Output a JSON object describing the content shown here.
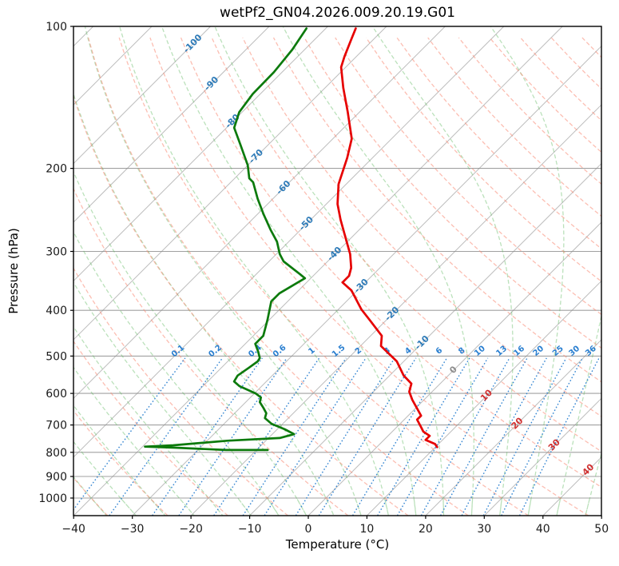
{
  "chart_data": {
    "type": "line",
    "variant": "skew-t-log-p",
    "title": "wetPf2_GN04.2026.009.20.19.G01",
    "xlabel": "Temperature (°C)",
    "ylabel": "Pressure (hPa)",
    "xlim": [
      -40,
      50
    ],
    "x_ticks": [
      -40,
      -30,
      -20,
      -10,
      0,
      10,
      20,
      30,
      40,
      50
    ],
    "pressure_ticks_hPa": [
      100,
      200,
      300,
      400,
      500,
      600,
      700,
      800,
      900,
      1000
    ],
    "pressure_range_hPa": [
      100,
      1090
    ],
    "skew_deg": 45,
    "grid": true,
    "legend_position": "none",
    "isotherm_step_C": 10,
    "isotherm_label_values_C": [
      -100,
      -90,
      -80,
      -70,
      -60,
      -50,
      -40,
      -30,
      -20,
      -10,
      0,
      10,
      20,
      30,
      40
    ],
    "mixing_ratio_labels_g_kg": [
      0.1,
      0.2,
      0.4,
      0.6,
      1,
      1.5,
      2,
      3,
      4,
      6,
      8,
      10,
      13,
      16,
      20,
      25,
      30,
      36
    ],
    "mixing_ratio_lines_top_hPa": 500,
    "dry_adiabats_theta_C": {
      "start": -50,
      "end": 250,
      "step": 10
    },
    "moist_adiabats_start_T_C_at_1000hPa": {
      "start": -40,
      "end": 60,
      "step": 5
    },
    "series": [
      {
        "name": "temperature",
        "color": "#e60000",
        "points_p_t": [
          [
            101,
            -74.9
          ],
          [
            107,
            -73.7
          ],
          [
            116,
            -72.0
          ],
          [
            122,
            -70.8
          ],
          [
            135,
            -66.9
          ],
          [
            152,
            -62.0
          ],
          [
            173,
            -56.8
          ],
          [
            190,
            -54.3
          ],
          [
            216,
            -51.3
          ],
          [
            238,
            -48.1
          ],
          [
            257,
            -44.9
          ],
          [
            278,
            -41.4
          ],
          [
            304,
            -37.4
          ],
          [
            325,
            -34.9
          ],
          [
            338,
            -33.9
          ],
          [
            349,
            -33.9
          ],
          [
            363,
            -31.0
          ],
          [
            398,
            -26.1
          ],
          [
            419,
            -22.9
          ],
          [
            453,
            -18.1
          ],
          [
            476,
            -16.5
          ],
          [
            513,
            -11.2
          ],
          [
            550,
            -7.6
          ],
          [
            572,
            -4.9
          ],
          [
            595,
            -3.9
          ],
          [
            619,
            -2.0
          ],
          [
            669,
            2.2
          ],
          [
            682,
            2.2
          ],
          [
            708,
            4.2
          ],
          [
            723,
            5.3
          ],
          [
            738,
            7.1
          ],
          [
            753,
            7.1
          ],
          [
            768,
            9.4
          ],
          [
            780,
            10.3
          ]
        ]
      },
      {
        "name": "dewpoint",
        "color": "#0c7a0c",
        "points_p_t": [
          [
            101,
            -83.3
          ],
          [
            112,
            -82.1
          ],
          [
            125,
            -81.4
          ],
          [
            139,
            -81.3
          ],
          [
            152,
            -80.5
          ],
          [
            164,
            -78.7
          ],
          [
            178,
            -74.8
          ],
          [
            197,
            -70.0
          ],
          [
            210,
            -67.5
          ],
          [
            214,
            -66.2
          ],
          [
            232,
            -62.6
          ],
          [
            250,
            -59.0
          ],
          [
            270,
            -55.1
          ],
          [
            286,
            -52.0
          ],
          [
            304,
            -49.4
          ],
          [
            315,
            -47.5
          ],
          [
            335,
            -42.6
          ],
          [
            342,
            -41.0
          ],
          [
            368,
            -42.8
          ],
          [
            383,
            -42.8
          ],
          [
            419,
            -40.3
          ],
          [
            453,
            -38.3
          ],
          [
            471,
            -38.3
          ],
          [
            489,
            -36.5
          ],
          [
            505,
            -35.1
          ],
          [
            513,
            -34.9
          ],
          [
            529,
            -35.3
          ],
          [
            550,
            -35.9
          ],
          [
            566,
            -35.5
          ],
          [
            579,
            -33.8
          ],
          [
            600,
            -29.8
          ],
          [
            612,
            -28.2
          ],
          [
            626,
            -27.6
          ],
          [
            644,
            -26.0
          ],
          [
            661,
            -24.6
          ],
          [
            677,
            -24.0
          ],
          [
            696,
            -21.9
          ],
          [
            715,
            -18.7
          ],
          [
            732,
            -16.3
          ],
          [
            746,
            -18.1
          ],
          [
            756,
            -26.6
          ],
          [
            773,
            -35.0
          ],
          [
            778,
            -39.6
          ],
          [
            782,
            -34.3
          ],
          [
            791,
            -25.2
          ],
          [
            791,
            -18.1
          ]
        ]
      }
    ],
    "colors": {
      "temperature_line": "#e60000",
      "dewpoint_line": "#0c7a0c",
      "isotherm": "#909090",
      "pressure_grid": "#909090",
      "dry_adiabat": "#f98873",
      "moist_adiabat": "#5cb85c",
      "mixing_ratio": "#2a7fd0",
      "isotherm_label_cold": "#2e7bb8",
      "isotherm_label_zero": "#8c8c8c",
      "isotherm_label_warm": "#d03030",
      "axis_text": "#1a1a1a"
    }
  }
}
